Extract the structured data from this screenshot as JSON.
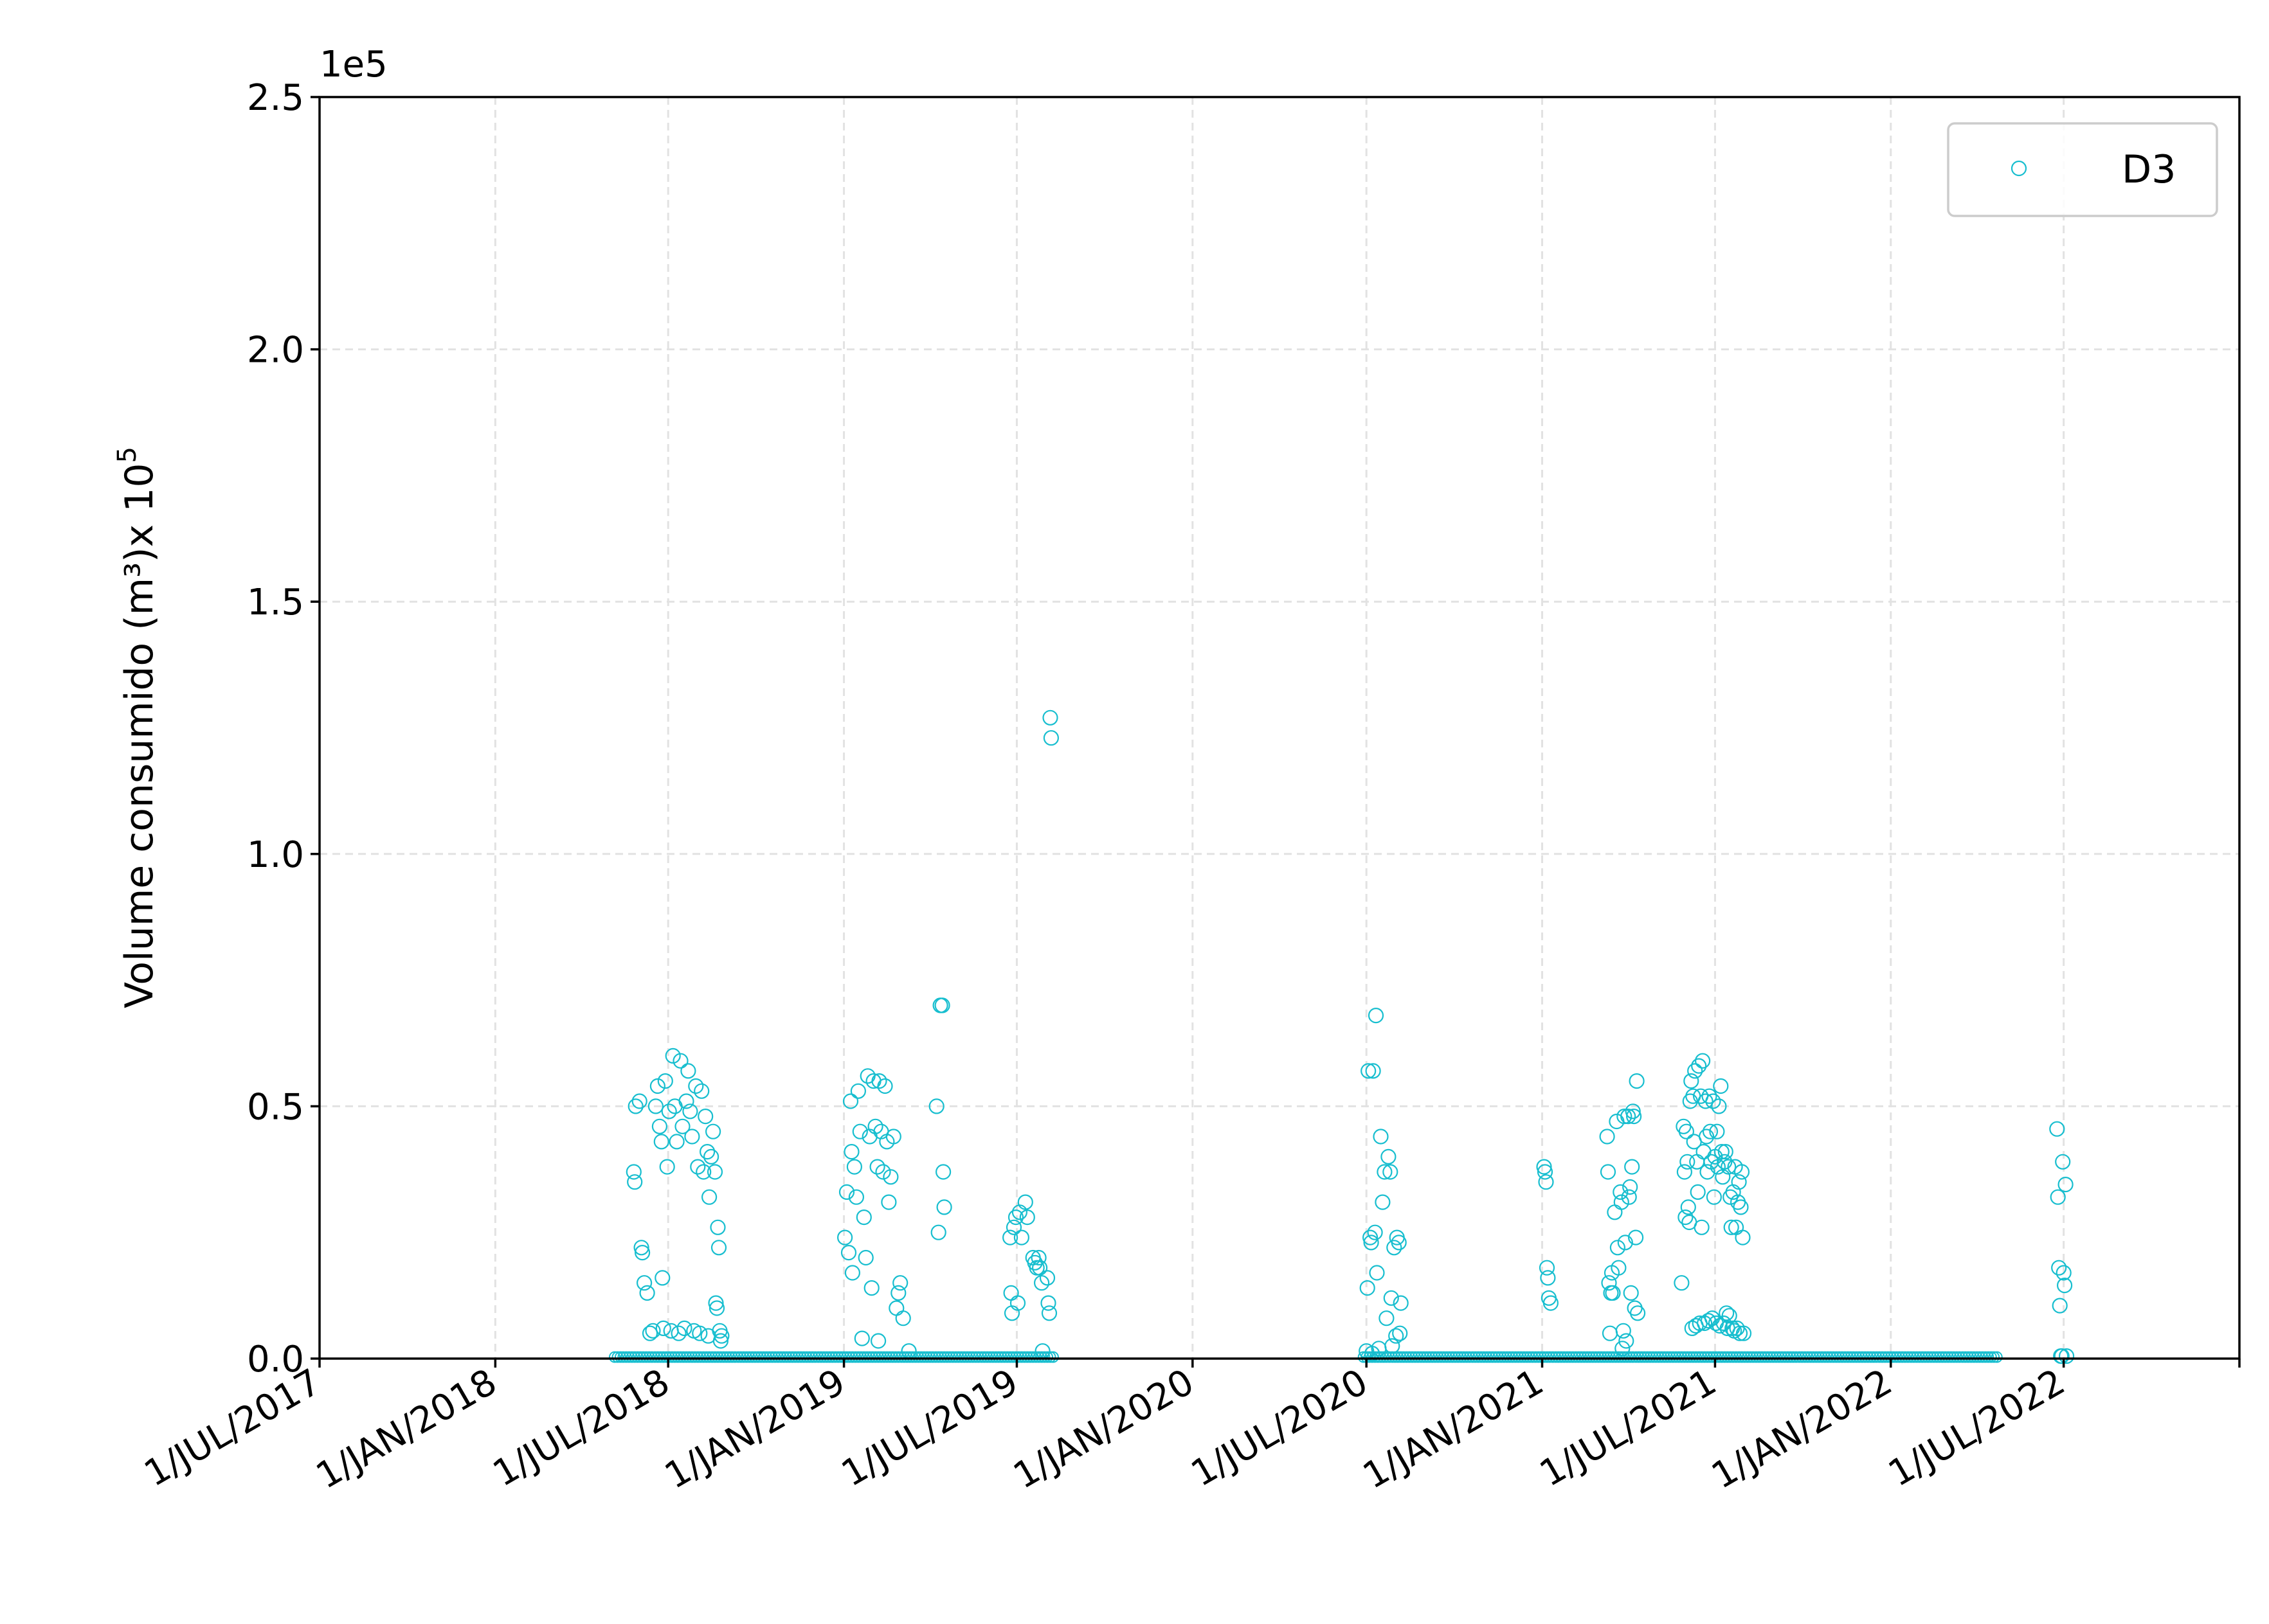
{
  "chart_data": {
    "type": "scatter",
    "xlabel": "",
    "ylabel": "Volume consumido (m³)x 10",
    "ylabel_superscript": "5",
    "y_offset_text": "1e5",
    "ylim": [
      0,
      2.5
    ],
    "y_ticks": [
      {
        "value": 0.0,
        "label": "0.0"
      },
      {
        "value": 0.5,
        "label": "0.5"
      },
      {
        "value": 1.0,
        "label": "1.0"
      },
      {
        "value": 1.5,
        "label": "1.5"
      },
      {
        "value": 2.0,
        "label": "2.0"
      },
      {
        "value": 2.5,
        "label": "2.5"
      }
    ],
    "xlim": [
      "2017-07-01",
      "2023-01-01"
    ],
    "x_ticks": [
      {
        "value": "2017-07-01",
        "label": "1/JUL/2017"
      },
      {
        "value": "2018-01-01",
        "label": "1/JAN/2018"
      },
      {
        "value": "2018-07-01",
        "label": "1/JUL/2018"
      },
      {
        "value": "2019-01-01",
        "label": "1/JAN/2019"
      },
      {
        "value": "2019-07-01",
        "label": "1/JUL/2019"
      },
      {
        "value": "2020-01-01",
        "label": "1/JAN/2020"
      },
      {
        "value": "2020-07-01",
        "label": "1/JUL/2020"
      },
      {
        "value": "2021-01-01",
        "label": "1/JAN/2021"
      },
      {
        "value": "2021-07-01",
        "label": "1/JUL/2021"
      },
      {
        "value": "2022-01-01",
        "label": "1/JAN/2022"
      },
      {
        "value": "2022-07-01",
        "label": "1/JUL/2022"
      },
      {
        "value": "2023-01-01",
        "label": ""
      }
    ],
    "grid": true,
    "legend_position": "top-right",
    "series": [
      {
        "name": "D3",
        "color": "#17becf",
        "marker": "open-circle",
        "points": [
          [
            "2018-05-26",
            0.37
          ],
          [
            "2018-05-27",
            0.35
          ],
          [
            "2018-05-28",
            0.5
          ],
          [
            "2018-06-01",
            0.51
          ],
          [
            "2018-06-03",
            0.22
          ],
          [
            "2018-06-04",
            0.21
          ],
          [
            "2018-06-06",
            0.15
          ],
          [
            "2018-06-09",
            0.13
          ],
          [
            "2018-06-12",
            0.05
          ],
          [
            "2018-06-15",
            0.055
          ],
          [
            "2018-06-18",
            0.5
          ],
          [
            "2018-06-20",
            0.54
          ],
          [
            "2018-06-22",
            0.46
          ],
          [
            "2018-06-24",
            0.43
          ],
          [
            "2018-06-25",
            0.16
          ],
          [
            "2018-06-26",
            0.06
          ],
          [
            "2018-06-28",
            0.55
          ],
          [
            "2018-06-30",
            0.38
          ],
          [
            "2018-07-02",
            0.49
          ],
          [
            "2018-07-04",
            0.055
          ],
          [
            "2018-07-06",
            0.6
          ],
          [
            "2018-07-08",
            0.5
          ],
          [
            "2018-07-10",
            0.43
          ],
          [
            "2018-07-12",
            0.05
          ],
          [
            "2018-07-14",
            0.59
          ],
          [
            "2018-07-16",
            0.46
          ],
          [
            "2018-07-18",
            0.06
          ],
          [
            "2018-07-20",
            0.51
          ],
          [
            "2018-07-22",
            0.57
          ],
          [
            "2018-07-24",
            0.49
          ],
          [
            "2018-07-26",
            0.44
          ],
          [
            "2018-07-28",
            0.055
          ],
          [
            "2018-07-30",
            0.54
          ],
          [
            "2018-08-01",
            0.38
          ],
          [
            "2018-08-03",
            0.05
          ],
          [
            "2018-08-05",
            0.53
          ],
          [
            "2018-08-07",
            0.37
          ],
          [
            "2018-08-09",
            0.48
          ],
          [
            "2018-08-11",
            0.41
          ],
          [
            "2018-08-12",
            0.045
          ],
          [
            "2018-08-13",
            0.32
          ],
          [
            "2018-08-15",
            0.4
          ],
          [
            "2018-08-17",
            0.45
          ],
          [
            "2018-08-19",
            0.37
          ],
          [
            "2018-08-20",
            0.11
          ],
          [
            "2018-08-21",
            0.1
          ],
          [
            "2018-08-22",
            0.26
          ],
          [
            "2018-08-23",
            0.22
          ],
          [
            "2018-08-24",
            0.055
          ],
          [
            "2018-08-25",
            0.035
          ],
          [
            "2018-08-26",
            0.045
          ],
          [
            "2019-01-02",
            0.24
          ],
          [
            "2019-01-04",
            0.33
          ],
          [
            "2019-01-06",
            0.21
          ],
          [
            "2019-01-08",
            0.51
          ],
          [
            "2019-01-09",
            0.41
          ],
          [
            "2019-01-10",
            0.17
          ],
          [
            "2019-01-12",
            0.38
          ],
          [
            "2019-01-14",
            0.32
          ],
          [
            "2019-01-16",
            0.53
          ],
          [
            "2019-01-18",
            0.45
          ],
          [
            "2019-01-20",
            0.04
          ],
          [
            "2019-01-22",
            0.28
          ],
          [
            "2019-01-24",
            0.2
          ],
          [
            "2019-01-26",
            0.56
          ],
          [
            "2019-01-28",
            0.44
          ],
          [
            "2019-01-30",
            0.14
          ],
          [
            "2019-02-01",
            0.55
          ],
          [
            "2019-02-03",
            0.46
          ],
          [
            "2019-02-05",
            0.38
          ],
          [
            "2019-02-06",
            0.035
          ],
          [
            "2019-02-07",
            0.55
          ],
          [
            "2019-02-09",
            0.45
          ],
          [
            "2019-02-11",
            0.37
          ],
          [
            "2019-02-13",
            0.54
          ],
          [
            "2019-02-15",
            0.43
          ],
          [
            "2019-02-17",
            0.31
          ],
          [
            "2019-02-19",
            0.36
          ],
          [
            "2019-02-22",
            0.44
          ],
          [
            "2019-02-25",
            0.1
          ],
          [
            "2019-02-27",
            0.13
          ],
          [
            "2019-03-01",
            0.15
          ],
          [
            "2019-03-04",
            0.08
          ],
          [
            "2019-03-10",
            0.015
          ],
          [
            "2019-04-08",
            0.5
          ],
          [
            "2019-04-10",
            0.25
          ],
          [
            "2019-04-12",
            0.7
          ],
          [
            "2019-04-14",
            0.7
          ],
          [
            "2019-04-15",
            0.37
          ],
          [
            "2019-04-16",
            0.3
          ],
          [
            "2019-06-24",
            0.24
          ],
          [
            "2019-06-25",
            0.13
          ],
          [
            "2019-06-26",
            0.09
          ],
          [
            "2019-06-28",
            0.26
          ],
          [
            "2019-06-30",
            0.28
          ],
          [
            "2019-07-02",
            0.11
          ],
          [
            "2019-07-04",
            0.29
          ],
          [
            "2019-07-06",
            0.24
          ],
          [
            "2019-07-10",
            0.31
          ],
          [
            "2019-07-12",
            0.28
          ],
          [
            "2019-07-18",
            0.2
          ],
          [
            "2019-07-20",
            0.19
          ],
          [
            "2019-07-22",
            0.18
          ],
          [
            "2019-07-24",
            0.2
          ],
          [
            "2019-07-25",
            0.18
          ],
          [
            "2019-07-27",
            0.15
          ],
          [
            "2019-07-28",
            0.015
          ],
          [
            "2019-08-02",
            0.16
          ],
          [
            "2019-08-03",
            0.11
          ],
          [
            "2019-08-04",
            0.09
          ],
          [
            "2019-08-05",
            1.27
          ],
          [
            "2019-08-06",
            1.23
          ],
          [
            "2020-07-01",
            0.015
          ],
          [
            "2020-07-02",
            0.14
          ],
          [
            "2020-07-03",
            0.57
          ],
          [
            "2020-07-05",
            0.24
          ],
          [
            "2020-07-06",
            0.23
          ],
          [
            "2020-07-07",
            0.01
          ],
          [
            "2020-07-08",
            0.57
          ],
          [
            "2020-07-10",
            0.25
          ],
          [
            "2020-07-11",
            0.68
          ],
          [
            "2020-07-12",
            0.17
          ],
          [
            "2020-07-14",
            0.02
          ],
          [
            "2020-07-16",
            0.44
          ],
          [
            "2020-07-18",
            0.31
          ],
          [
            "2020-07-20",
            0.37
          ],
          [
            "2020-07-22",
            0.08
          ],
          [
            "2020-07-24",
            0.4
          ],
          [
            "2020-07-26",
            0.37
          ],
          [
            "2020-07-27",
            0.12
          ],
          [
            "2020-07-28",
            0.025
          ],
          [
            "2020-07-30",
            0.22
          ],
          [
            "2020-08-01",
            0.045
          ],
          [
            "2020-08-02",
            0.24
          ],
          [
            "2020-08-04",
            0.23
          ],
          [
            "2020-08-05",
            0.05
          ],
          [
            "2020-08-06",
            0.11
          ],
          [
            "2021-01-03",
            0.38
          ],
          [
            "2021-01-04",
            0.37
          ],
          [
            "2021-01-05",
            0.35
          ],
          [
            "2021-01-06",
            0.18
          ],
          [
            "2021-01-07",
            0.16
          ],
          [
            "2021-01-08",
            0.12
          ],
          [
            "2021-01-10",
            0.11
          ],
          [
            "2021-03-10",
            0.44
          ],
          [
            "2021-03-11",
            0.37
          ],
          [
            "2021-03-12",
            0.15
          ],
          [
            "2021-03-13",
            0.05
          ],
          [
            "2021-03-14",
            0.13
          ],
          [
            "2021-03-15",
            0.17
          ],
          [
            "2021-03-16",
            0.13
          ],
          [
            "2021-03-18",
            0.29
          ],
          [
            "2021-03-20",
            0.47
          ],
          [
            "2021-03-21",
            0.22
          ],
          [
            "2021-03-22",
            0.18
          ],
          [
            "2021-03-24",
            0.33
          ],
          [
            "2021-03-25",
            0.31
          ],
          [
            "2021-03-26",
            0.02
          ],
          [
            "2021-03-27",
            0.055
          ],
          [
            "2021-03-28",
            0.48
          ],
          [
            "2021-03-29",
            0.23
          ],
          [
            "2021-03-30",
            0.035
          ],
          [
            "2021-04-01",
            0.48
          ],
          [
            "2021-04-02",
            0.32
          ],
          [
            "2021-04-03",
            0.34
          ],
          [
            "2021-04-04",
            0.13
          ],
          [
            "2021-04-05",
            0.38
          ],
          [
            "2021-04-06",
            0.49
          ],
          [
            "2021-04-07",
            0.48
          ],
          [
            "2021-04-08",
            0.1
          ],
          [
            "2021-04-09",
            0.24
          ],
          [
            "2021-04-10",
            0.55
          ],
          [
            "2021-04-11",
            0.09
          ],
          [
            "2021-05-27",
            0.15
          ],
          [
            "2021-05-29",
            0.46
          ],
          [
            "2021-05-30",
            0.37
          ],
          [
            "2021-05-31",
            0.28
          ],
          [
            "2021-06-01",
            0.45
          ],
          [
            "2021-06-02",
            0.39
          ],
          [
            "2021-06-03",
            0.3
          ],
          [
            "2021-06-04",
            0.27
          ],
          [
            "2021-06-05",
            0.51
          ],
          [
            "2021-06-06",
            0.55
          ],
          [
            "2021-06-07",
            0.06
          ],
          [
            "2021-06-08",
            0.52
          ],
          [
            "2021-06-09",
            0.43
          ],
          [
            "2021-06-10",
            0.57
          ],
          [
            "2021-06-11",
            0.065
          ],
          [
            "2021-06-12",
            0.39
          ],
          [
            "2021-06-13",
            0.33
          ],
          [
            "2021-06-14",
            0.58
          ],
          [
            "2021-06-15",
            0.07
          ],
          [
            "2021-06-16",
            0.52
          ],
          [
            "2021-06-17",
            0.26
          ],
          [
            "2021-06-18",
            0.59
          ],
          [
            "2021-06-19",
            0.41
          ],
          [
            "2021-06-20",
            0.07
          ],
          [
            "2021-06-21",
            0.51
          ],
          [
            "2021-06-22",
            0.44
          ],
          [
            "2021-06-23",
            0.37
          ],
          [
            "2021-06-24",
            0.075
          ],
          [
            "2021-06-25",
            0.52
          ],
          [
            "2021-06-26",
            0.45
          ],
          [
            "2021-06-27",
            0.39
          ],
          [
            "2021-06-28",
            0.08
          ],
          [
            "2021-06-29",
            0.51
          ],
          [
            "2021-06-30",
            0.32
          ],
          [
            "2021-07-01",
            0.4
          ],
          [
            "2021-07-02",
            0.07
          ],
          [
            "2021-07-03",
            0.45
          ],
          [
            "2021-07-04",
            0.38
          ],
          [
            "2021-07-05",
            0.5
          ],
          [
            "2021-07-06",
            0.065
          ],
          [
            "2021-07-07",
            0.54
          ],
          [
            "2021-07-08",
            0.41
          ],
          [
            "2021-07-09",
            0.36
          ],
          [
            "2021-07-10",
            0.07
          ],
          [
            "2021-07-11",
            0.39
          ],
          [
            "2021-07-12",
            0.41
          ],
          [
            "2021-07-13",
            0.09
          ],
          [
            "2021-07-14",
            0.06
          ],
          [
            "2021-07-15",
            0.38
          ],
          [
            "2021-07-16",
            0.085
          ],
          [
            "2021-07-17",
            0.32
          ],
          [
            "2021-07-18",
            0.26
          ],
          [
            "2021-07-19",
            0.06
          ],
          [
            "2021-07-20",
            0.33
          ],
          [
            "2021-07-21",
            0.055
          ],
          [
            "2021-07-22",
            0.38
          ],
          [
            "2021-07-23",
            0.26
          ],
          [
            "2021-07-24",
            0.06
          ],
          [
            "2021-07-25",
            0.31
          ],
          [
            "2021-07-26",
            0.35
          ],
          [
            "2021-07-27",
            0.05
          ],
          [
            "2021-07-28",
            0.3
          ],
          [
            "2021-07-29",
            0.37
          ],
          [
            "2021-07-30",
            0.24
          ],
          [
            "2021-07-31",
            0.05
          ],
          [
            "2022-06-24",
            0.455
          ],
          [
            "2022-06-25",
            0.32
          ],
          [
            "2022-06-26",
            0.18
          ],
          [
            "2022-06-27",
            0.105
          ],
          [
            "2022-06-28",
            0.005
          ],
          [
            "2022-06-29",
            0.005
          ],
          [
            "2022-06-30",
            0.39
          ],
          [
            "2022-07-01",
            0.17
          ],
          [
            "2022-07-02",
            0.145
          ],
          [
            "2022-07-03",
            0.345
          ],
          [
            "2022-07-04",
            0.005
          ]
        ],
        "baseline_runs": [
          {
            "from": "2018-05-06",
            "to": "2019-08-08",
            "value": 0.003
          },
          {
            "from": "2020-06-28",
            "to": "2022-04-22",
            "value": 0.003
          }
        ],
        "baseline_step_days": 3
      }
    ]
  }
}
